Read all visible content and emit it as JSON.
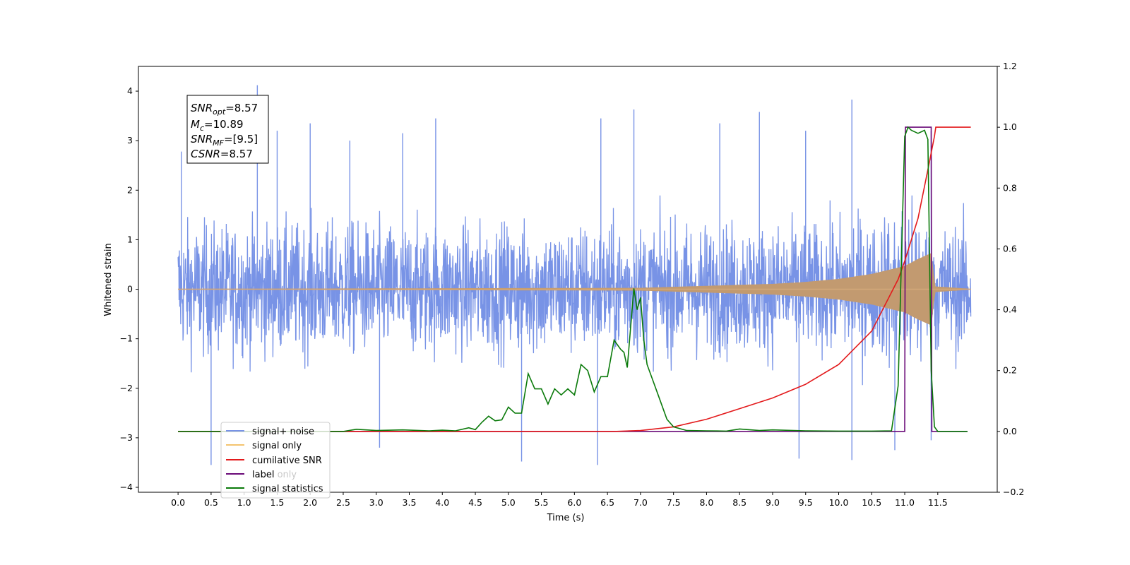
{
  "chart_data": {
    "type": "line",
    "xlabel": "Time (s)",
    "ylabel_left": "Whitened strain",
    "ylabel_right": "",
    "xlim": [
      -0.6,
      12.4
    ],
    "ylim_left": [
      -4.1,
      4.5
    ],
    "ylim_right": [
      -0.2,
      1.2
    ],
    "x_ticks": [
      "0.0",
      "0.5",
      "1.0",
      "1.5",
      "2.0",
      "2.5",
      "3.0",
      "3.5",
      "4.0",
      "4.5",
      "5.0",
      "5.5",
      "6.0",
      "6.5",
      "7.0",
      "7.5",
      "8.0",
      "8.5",
      "9.0",
      "9.5",
      "10.0",
      "10.5",
      "11.0",
      "11.5"
    ],
    "y_ticks_left": [
      "4",
      "3",
      "2",
      "1",
      "0",
      "−1",
      "−2",
      "−3",
      "−4"
    ],
    "y_ticks_right": [
      "1.2",
      "1.0",
      "0.8",
      "0.6",
      "0.4",
      "0.2",
      "0.0",
      "−0.2"
    ],
    "grid": false,
    "legend_position": "lower-left",
    "legend": [
      "signal+ noise",
      "signal only",
      "cumilative SNR",
      "label",
      "signal statistics"
    ],
    "legend_ghost_text": "label only",
    "annotation": {
      "snr_opt": {
        "sym": "SNR",
        "sub": "opt",
        "val": "=8.57"
      },
      "mc": {
        "sym": "M",
        "sub": "c",
        "val": "=10.89"
      },
      "snr_mf": {
        "sym": "SNR",
        "sub": "MF",
        "val": "=[9.5]"
      },
      "csnr": {
        "sym": "CSNR",
        "sub": "",
        "val": "=8.57"
      }
    },
    "colors": {
      "signal_noise": "#7893e6",
      "signal_only": "#e8a448",
      "cumulative_snr": "#e31a1c",
      "label": "#6a0a78",
      "signal_statistics": "#0a7a0a"
    },
    "series": [
      {
        "name": "signal+ noise",
        "axis": "left",
        "description_range": [
          -3.6,
          4.1
        ],
        "x_range": [
          0.0,
          12.0
        ],
        "peaks": [
          [
            0.05,
            2.78
          ],
          [
            1.2,
            4.12
          ],
          [
            1.5,
            3.2
          ],
          [
            2.0,
            3.35
          ],
          [
            2.6,
            3.0
          ],
          [
            3.4,
            3.15
          ],
          [
            3.9,
            3.45
          ],
          [
            6.4,
            3.45
          ],
          [
            6.9,
            3.63
          ],
          [
            8.2,
            3.35
          ],
          [
            8.8,
            3.58
          ],
          [
            9.5,
            3.2
          ],
          [
            10.2,
            3.83
          ],
          [
            11.4,
            3.2
          ],
          [
            0.5,
            -3.55
          ],
          [
            3.05,
            -3.2
          ],
          [
            5.2,
            -3.48
          ],
          [
            6.35,
            -3.55
          ],
          [
            9.4,
            -3.42
          ],
          [
            10.2,
            -3.45
          ],
          [
            10.85,
            -3.25
          ],
          [
            11.4,
            -3.05
          ]
        ]
      },
      {
        "name": "signal only",
        "axis": "left",
        "envelope": [
          [
            0.0,
            0.0
          ],
          [
            7.0,
            0.02
          ],
          [
            7.5,
            0.04
          ],
          [
            8.0,
            0.06
          ],
          [
            8.5,
            0.08
          ],
          [
            9.0,
            0.1
          ],
          [
            9.5,
            0.14
          ],
          [
            10.0,
            0.2
          ],
          [
            10.5,
            0.3
          ],
          [
            11.0,
            0.46
          ],
          [
            11.2,
            0.6
          ],
          [
            11.4,
            0.72
          ],
          [
            11.45,
            0.05
          ],
          [
            12.0,
            0.0
          ]
        ]
      },
      {
        "name": "cumilative SNR",
        "axis": "right",
        "x": [
          0.0,
          6.6,
          7.0,
          7.5,
          8.0,
          8.5,
          9.0,
          9.5,
          10.0,
          10.5,
          10.9,
          11.0,
          11.2,
          11.35,
          11.45,
          11.47,
          12.0
        ],
        "values": [
          0.0,
          0.0,
          0.003,
          0.015,
          0.04,
          0.075,
          0.11,
          0.155,
          0.22,
          0.33,
          0.5,
          0.56,
          0.7,
          0.86,
          0.97,
          1.0,
          1.0
        ]
      },
      {
        "name": "label",
        "axis": "right",
        "x": [
          0.0,
          11.0,
          11.01,
          11.4,
          11.41,
          11.95
        ],
        "values": [
          0.0,
          0.0,
          1.0,
          1.0,
          0.0,
          0.0
        ]
      },
      {
        "name": "signal statistics",
        "axis": "right",
        "x": [
          0.0,
          2.5,
          2.7,
          3.0,
          3.4,
          3.8,
          4.0,
          4.2,
          4.4,
          4.5,
          4.6,
          4.7,
          4.8,
          4.9,
          5.0,
          5.1,
          5.2,
          5.3,
          5.4,
          5.5,
          5.6,
          5.7,
          5.8,
          5.9,
          6.0,
          6.1,
          6.2,
          6.3,
          6.4,
          6.5,
          6.6,
          6.7,
          6.75,
          6.8,
          6.9,
          6.95,
          7.0,
          7.05,
          7.1,
          7.2,
          7.3,
          7.4,
          7.5,
          7.7,
          8.0,
          8.3,
          8.5,
          8.8,
          9.0,
          9.5,
          10.0,
          10.5,
          10.8,
          10.9,
          10.95,
          11.0,
          11.05,
          11.1,
          11.2,
          11.3,
          11.35,
          11.4,
          11.45,
          11.5,
          11.95
        ],
        "values": [
          0.0,
          0.0,
          0.007,
          0.003,
          0.005,
          0.002,
          0.004,
          0.002,
          0.012,
          0.006,
          0.03,
          0.05,
          0.035,
          0.038,
          0.08,
          0.06,
          0.06,
          0.19,
          0.14,
          0.14,
          0.09,
          0.14,
          0.12,
          0.14,
          0.12,
          0.22,
          0.2,
          0.13,
          0.18,
          0.18,
          0.3,
          0.27,
          0.26,
          0.21,
          0.47,
          0.4,
          0.44,
          0.3,
          0.22,
          0.16,
          0.1,
          0.04,
          0.015,
          0.003,
          0.002,
          0.001,
          0.008,
          0.003,
          0.005,
          0.002,
          0.001,
          0.001,
          0.002,
          0.15,
          0.57,
          0.97,
          1.0,
          0.99,
          0.98,
          0.99,
          0.96,
          0.2,
          0.015,
          0.0,
          0.0
        ]
      }
    ]
  }
}
